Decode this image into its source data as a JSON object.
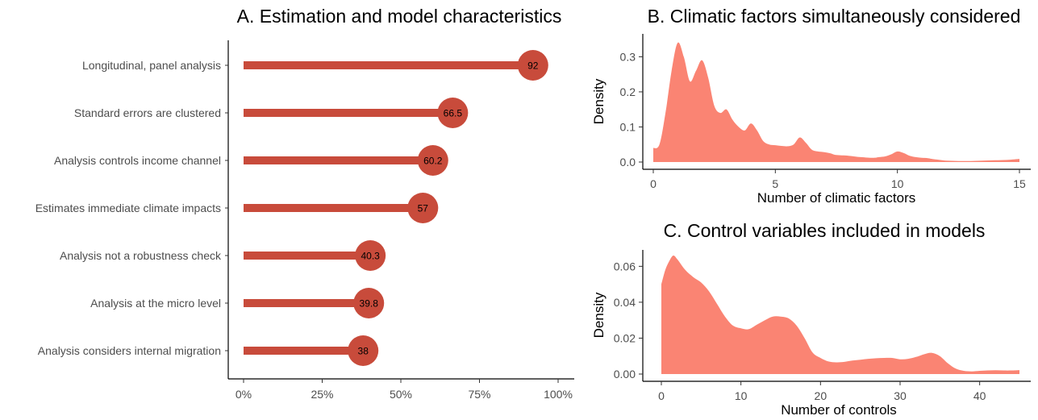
{
  "colors": {
    "lollipop": "#c84b3b",
    "density_fill": "#fa8473",
    "axis": "#000000",
    "tick_text": "#4d4d4d"
  },
  "chart_data": [
    {
      "type": "bar",
      "orientation": "horizontal",
      "style": "lollipop",
      "title": "A. Estimation and model characteristics",
      "xlabel": "",
      "ylabel": "",
      "xlim": [
        0,
        100
      ],
      "x_ticks": [
        0,
        25,
        50,
        75,
        100
      ],
      "x_tick_labels": [
        "0%",
        "25%",
        "50%",
        "75%",
        "100%"
      ],
      "grid": false,
      "categories": [
        "Longitudinal, panel analysis",
        "Standard errors are clustered",
        "Analysis controls income channel",
        "Estimates immediate climate impacts",
        "Analysis not a robustness check",
        "Analysis at the micro level",
        "Analysis considers internal migration"
      ],
      "values": [
        92,
        66.5,
        60.2,
        57,
        40.3,
        39.8,
        38
      ],
      "value_labels": [
        "92",
        "66.5",
        "60.2",
        "57",
        "40.3",
        "39.8",
        "38"
      ]
    },
    {
      "type": "area",
      "title": "B. Climatic factors simultaneously considered",
      "xlabel": "Number of climatic factors",
      "ylabel": "Density",
      "xlim": [
        0,
        15
      ],
      "ylim": [
        0,
        0.34
      ],
      "x_ticks": [
        0,
        5,
        10,
        15
      ],
      "x_tick_labels": [
        "0",
        "5",
        "10",
        "15"
      ],
      "y_ticks": [
        0,
        0.1,
        0.2,
        0.3
      ],
      "y_tick_labels": [
        "0.0",
        "0.1",
        "0.2",
        "0.3"
      ],
      "grid": false,
      "x": [
        0,
        0.25,
        0.5,
        0.75,
        1.0,
        1.25,
        1.5,
        1.75,
        2.0,
        2.25,
        2.5,
        2.75,
        3.0,
        3.25,
        3.5,
        3.75,
        4.0,
        4.25,
        4.5,
        4.75,
        5.0,
        5.25,
        5.5,
        5.75,
        6.0,
        6.25,
        6.5,
        6.75,
        7.0,
        7.25,
        7.5,
        8.0,
        8.5,
        9.0,
        9.25,
        9.5,
        9.75,
        10.0,
        10.25,
        10.5,
        10.75,
        11.0,
        11.25,
        11.5,
        12.0,
        12.5,
        13.0,
        13.5,
        14.0,
        14.5,
        15.0
      ],
      "y": [
        0.04,
        0.05,
        0.14,
        0.26,
        0.34,
        0.3,
        0.23,
        0.26,
        0.29,
        0.24,
        0.16,
        0.14,
        0.15,
        0.12,
        0.1,
        0.09,
        0.11,
        0.09,
        0.06,
        0.05,
        0.048,
        0.046,
        0.045,
        0.05,
        0.07,
        0.055,
        0.035,
        0.03,
        0.028,
        0.025,
        0.02,
        0.018,
        0.014,
        0.012,
        0.014,
        0.016,
        0.022,
        0.03,
        0.026,
        0.018,
        0.014,
        0.012,
        0.011,
        0.008,
        0.004,
        0.003,
        0.003,
        0.004,
        0.005,
        0.006,
        0.009
      ]
    },
    {
      "type": "area",
      "title": "C. Control variables included in models",
      "xlabel": "Number of controls",
      "ylabel": "Density",
      "xlim": [
        0,
        45
      ],
      "ylim": [
        0,
        0.066
      ],
      "x_ticks": [
        0,
        10,
        20,
        30,
        40
      ],
      "x_tick_labels": [
        "0",
        "10",
        "20",
        "30",
        "40"
      ],
      "y_ticks": [
        0,
        0.02,
        0.04,
        0.06
      ],
      "y_tick_labels": [
        "0.00",
        "0.02",
        "0.04",
        "0.06"
      ],
      "grid": false,
      "x": [
        0,
        0.5,
        1,
        1.5,
        2,
        3,
        4,
        5,
        6,
        7,
        8,
        9,
        10,
        11,
        12,
        13,
        14,
        15,
        16,
        17,
        18,
        19,
        20,
        21,
        22,
        23,
        24,
        25,
        26,
        27,
        28,
        29,
        30,
        31,
        32,
        33,
        34,
        35,
        36,
        37,
        38,
        39,
        40,
        41,
        42,
        43,
        44,
        45
      ],
      "y": [
        0.05,
        0.058,
        0.063,
        0.066,
        0.064,
        0.058,
        0.054,
        0.051,
        0.046,
        0.039,
        0.032,
        0.027,
        0.0255,
        0.025,
        0.0275,
        0.03,
        0.032,
        0.032,
        0.031,
        0.027,
        0.02,
        0.012,
        0.009,
        0.007,
        0.0065,
        0.0068,
        0.0075,
        0.008,
        0.0085,
        0.0088,
        0.009,
        0.009,
        0.0082,
        0.0085,
        0.0095,
        0.011,
        0.0118,
        0.01,
        0.006,
        0.003,
        0.0018,
        0.0015,
        0.0018,
        0.002,
        0.0021,
        0.002,
        0.002,
        0.0022
      ]
    }
  ]
}
